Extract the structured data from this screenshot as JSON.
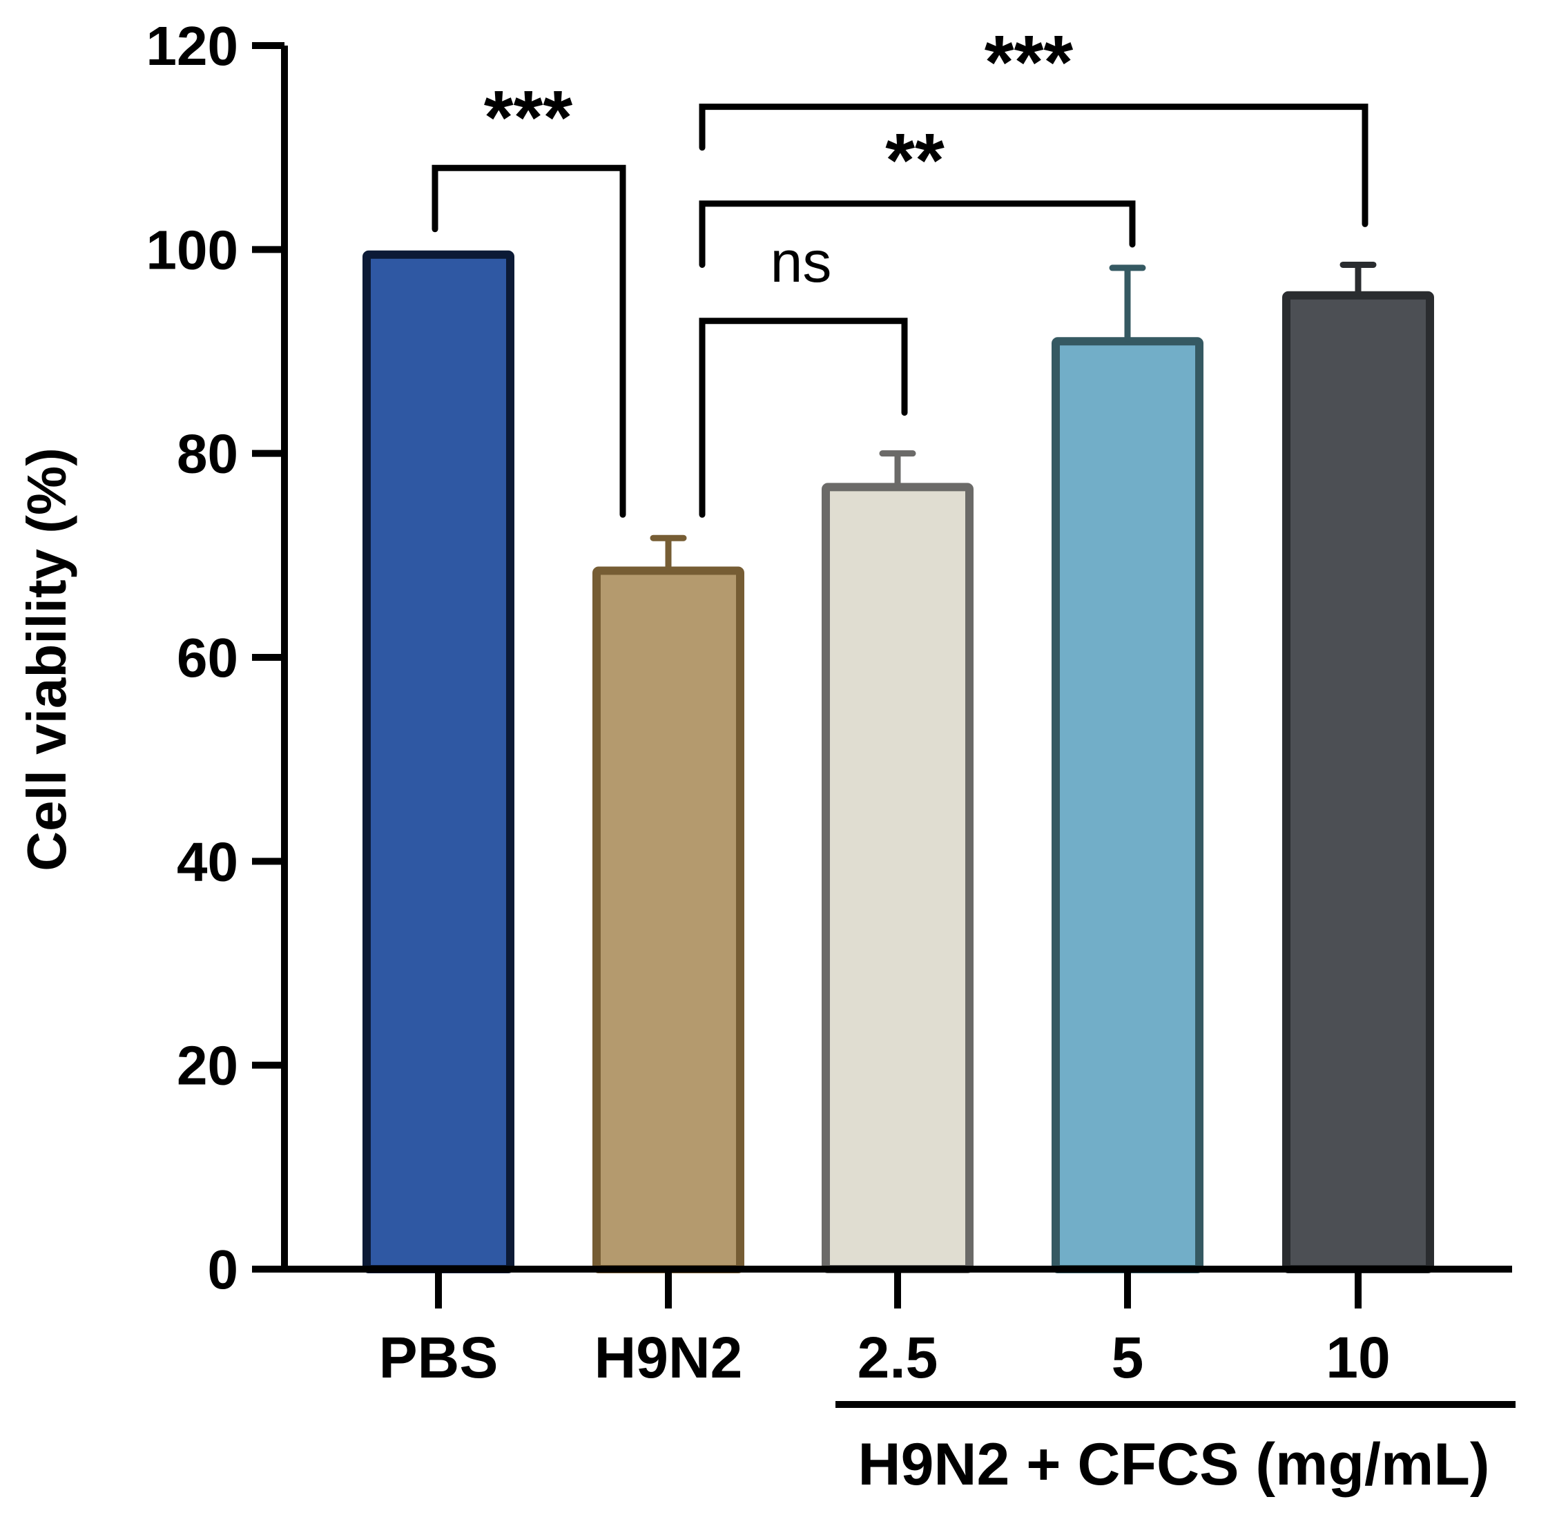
{
  "chart_data": {
    "type": "bar",
    "ylabel": "Cell viability (%)",
    "ylim": [
      0,
      120
    ],
    "yticks": [
      0,
      20,
      40,
      60,
      80,
      100,
      120
    ],
    "categories": [
      "PBS",
      "H9N2",
      "2.5",
      "5",
      "10"
    ],
    "values": [
      99.5,
      68.5,
      76.7,
      91.0,
      95.5
    ],
    "errors": [
      0,
      3.2,
      3.3,
      7.2,
      3.0
    ],
    "fill_colors": [
      "#2f58a3",
      "#b49a6e",
      "#e0ddd1",
      "#72aec8",
      "#4c4f54"
    ],
    "edge_colors": [
      "#0c1a36",
      "#765d34",
      "#6b6a68",
      "#355962",
      "#2a2c2f"
    ],
    "group_label": "H9N2 + CFCS (mg/mL)",
    "group_span": [
      2,
      4
    ],
    "comparisons": [
      {
        "from": 0,
        "to": 1,
        "label": "***",
        "y": 108
      },
      {
        "from": 1,
        "to": 2,
        "label": "ns",
        "y": 93
      },
      {
        "from": 1,
        "to": 3,
        "label": "**",
        "y": 104.5
      },
      {
        "from": 1,
        "to": 4,
        "label": "***",
        "y": 114
      }
    ]
  }
}
